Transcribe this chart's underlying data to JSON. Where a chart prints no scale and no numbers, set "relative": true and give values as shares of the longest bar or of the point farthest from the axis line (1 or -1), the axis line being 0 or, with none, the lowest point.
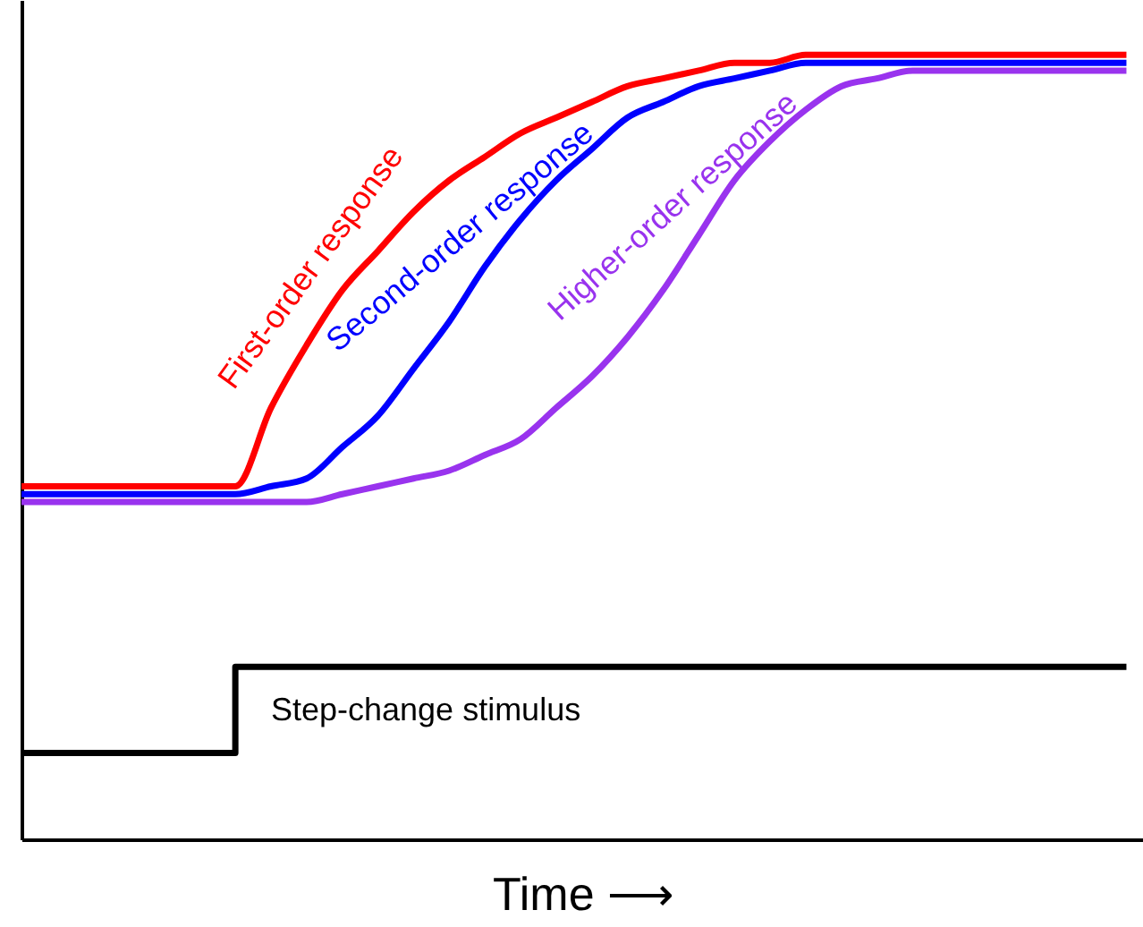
{
  "chart_data": {
    "type": "line",
    "relative": true,
    "xlabel": "Time ⟶",
    "categories": [
      null,
      null,
      null,
      null,
      null,
      null,
      null,
      null,
      null,
      null,
      null,
      null,
      null,
      null,
      null,
      null,
      null,
      null,
      null,
      null,
      null,
      null,
      null,
      null,
      null,
      null,
      null,
      null,
      null,
      null,
      null,
      null
    ],
    "series": [
      {
        "name": "First-order response",
        "color": "#ff0000",
        "values": [
          0.45,
          0.45,
          0.45,
          0.45,
          0.45,
          0.45,
          0.45,
          0.55,
          0.63,
          0.7,
          0.75,
          0.8,
          0.84,
          0.87,
          0.9,
          0.92,
          0.94,
          0.96,
          0.97,
          0.98,
          0.99,
          0.99,
          1.0,
          1.0,
          1.0,
          1.0,
          1.0,
          1.0,
          1.0,
          1.0,
          1.0,
          1.0
        ]
      },
      {
        "name": "Second-order response",
        "color": "#0000ff",
        "values": [
          0.44,
          0.44,
          0.44,
          0.44,
          0.44,
          0.44,
          0.44,
          0.45,
          0.46,
          0.5,
          0.54,
          0.6,
          0.66,
          0.73,
          0.79,
          0.84,
          0.88,
          0.92,
          0.94,
          0.96,
          0.97,
          0.98,
          0.99,
          0.99,
          0.99,
          0.99,
          0.99,
          0.99,
          0.99,
          0.99,
          0.99,
          0.99
        ]
      },
      {
        "name": "Higher-order response",
        "color": "#9933ee",
        "values": [
          0.43,
          0.43,
          0.43,
          0.43,
          0.43,
          0.43,
          0.43,
          0.43,
          0.43,
          0.44,
          0.45,
          0.46,
          0.47,
          0.49,
          0.51,
          0.55,
          0.59,
          0.64,
          0.7,
          0.77,
          0.84,
          0.89,
          0.93,
          0.96,
          0.97,
          0.98,
          0.98,
          0.98,
          0.98,
          0.98,
          0.98,
          0.98
        ]
      },
      {
        "name": "Step-change stimulus",
        "type": "step",
        "color": "#000000",
        "values": [
          0.11,
          0.11,
          0.11,
          0.11,
          0.11,
          0.11,
          0.22,
          0.22,
          0.22,
          0.22,
          0.22,
          0.22,
          0.22,
          0.22,
          0.22,
          0.22,
          0.22,
          0.22,
          0.22,
          0.22,
          0.22,
          0.22,
          0.22,
          0.22,
          0.22,
          0.22,
          0.22,
          0.22,
          0.22,
          0.22,
          0.22,
          0.22
        ]
      }
    ],
    "legend": false,
    "grid": false,
    "tick_labels": false
  }
}
